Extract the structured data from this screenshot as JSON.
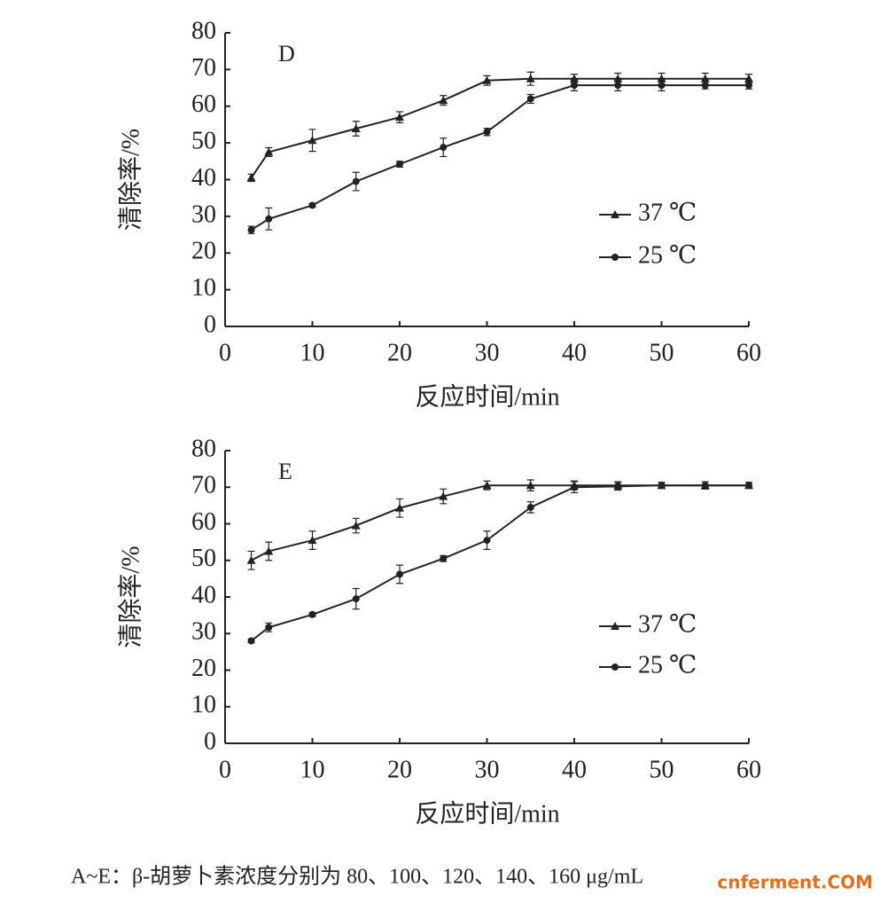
{
  "chart_data": [
    {
      "type": "line",
      "panel": "D",
      "xlabel": "反应时间/min",
      "ylabel": "清除率/%",
      "x": [
        3,
        5,
        10,
        15,
        20,
        25,
        30,
        35,
        40,
        45,
        50,
        55,
        60
      ],
      "xlim": [
        0,
        60
      ],
      "xticks": [
        0,
        10,
        20,
        30,
        40,
        50,
        60
      ],
      "ylim": [
        0,
        80
      ],
      "yticks": [
        0,
        10,
        20,
        30,
        40,
        50,
        60,
        70,
        80
      ],
      "series": [
        {
          "name": "37 ℃",
          "color": "#222222",
          "marker": "triangle",
          "values": [
            40.5,
            47.5,
            50.7,
            53.9,
            57,
            61.6,
            67,
            67.5,
            67.5,
            67.5,
            67.5,
            67.5,
            67.5
          ],
          "errors": [
            1,
            1.2,
            3,
            2,
            1.5,
            1.3,
            1.3,
            1.8,
            1.2,
            1.5,
            1.5,
            1.5,
            1.2
          ]
        },
        {
          "name": "25 ℃",
          "color": "#222222",
          "marker": "circle",
          "values": [
            26.3,
            29.3,
            33,
            39.5,
            44.2,
            48.8,
            53,
            62,
            65.7,
            65.7,
            65.7,
            65.7,
            65.7
          ],
          "errors": [
            1,
            3,
            0.5,
            2.5,
            0.8,
            2.5,
            1,
            1.2,
            1.5,
            1.5,
            1.5,
            1,
            1
          ]
        }
      ]
    },
    {
      "type": "line",
      "panel": "E",
      "xlabel": "反应时间/min",
      "ylabel": "清除率/%",
      "x": [
        3,
        5,
        10,
        15,
        20,
        25,
        30,
        35,
        40,
        45,
        50,
        55,
        60
      ],
      "xlim": [
        0,
        60
      ],
      "xticks": [
        0,
        10,
        20,
        30,
        40,
        50,
        60
      ],
      "ylim": [
        0,
        80
      ],
      "yticks": [
        0,
        10,
        20,
        30,
        40,
        50,
        60,
        70,
        80
      ],
      "series": [
        {
          "name": "37 ℃",
          "color": "#222222",
          "marker": "triangle",
          "values": [
            50,
            52.5,
            55.5,
            59.5,
            64.3,
            67.5,
            70.5,
            70.5,
            70.5,
            70.5,
            70.5,
            70.5,
            70.5
          ],
          "errors": [
            2.5,
            2.5,
            2.5,
            2,
            2.5,
            2,
            1.2,
            1.5,
            1.2,
            1,
            0.8,
            1,
            0.8
          ]
        },
        {
          "name": "25 ℃",
          "color": "#222222",
          "marker": "circle",
          "values": [
            28,
            31.7,
            35.2,
            39.5,
            46.2,
            50.5,
            55.5,
            64.5,
            70,
            70.2,
            70.5,
            70.5,
            70.5
          ],
          "errors": [
            0.5,
            1.2,
            0.5,
            2.8,
            2.5,
            0.8,
            2.5,
            1.5,
            1.5,
            1,
            0.8,
            1,
            0.8
          ]
        }
      ]
    }
  ],
  "caption": "A~E：β-胡萝卜素浓度分别为 80、100、120、140、160 μg/mL",
  "watermark": "cnferment.COM"
}
